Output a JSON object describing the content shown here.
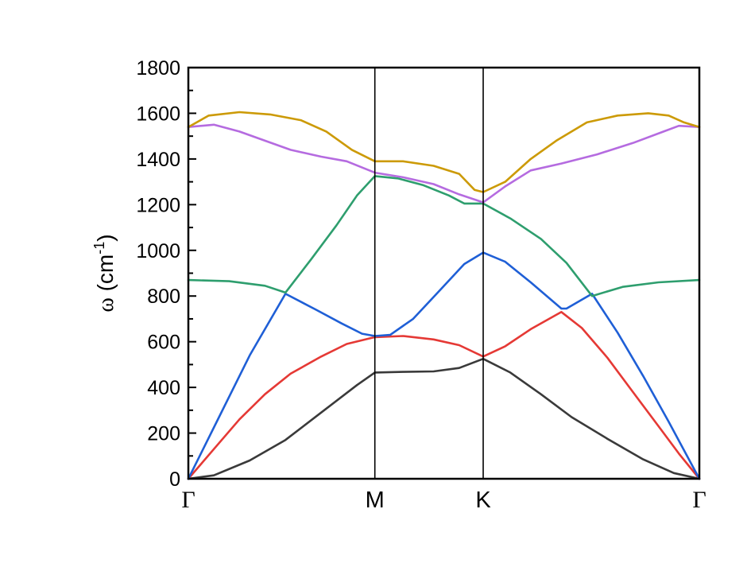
{
  "chart_data": {
    "type": "line",
    "title": "",
    "ylabel": "ω (cm⁻¹)",
    "ylabel_parts": {
      "symbol": "ω",
      "open": " (cm",
      "sup": "-1",
      "close": ")"
    },
    "xlabel": "",
    "ylim": [
      0,
      1800
    ],
    "yticks": [
      0,
      200,
      400,
      600,
      800,
      1000,
      1200,
      1400,
      1600,
      1800
    ],
    "xlim": [
      0,
      1
    ],
    "kpoints": [
      {
        "label": "Γ",
        "x": 0.0,
        "style": "greek"
      },
      {
        "label": "M",
        "x": 0.365
      },
      {
        "label": "K",
        "x": 0.577
      },
      {
        "label": "Γ",
        "x": 1.0,
        "style": "greek"
      }
    ],
    "grid": false,
    "series": [
      {
        "color": "#3a3a3a",
        "points": [
          [
            0,
            0
          ],
          [
            0.05,
            15
          ],
          [
            0.12,
            80
          ],
          [
            0.19,
            170
          ],
          [
            0.26,
            290
          ],
          [
            0.33,
            410
          ],
          [
            0.365,
            465
          ],
          [
            0.42,
            468
          ],
          [
            0.48,
            470
          ],
          [
            0.53,
            485
          ],
          [
            0.577,
            525
          ],
          [
            0.63,
            465
          ],
          [
            0.69,
            370
          ],
          [
            0.75,
            270
          ],
          [
            0.82,
            175
          ],
          [
            0.89,
            85
          ],
          [
            0.95,
            25
          ],
          [
            1.0,
            0
          ]
        ]
      },
      {
        "color": "#e53935",
        "points": [
          [
            0,
            0
          ],
          [
            0.05,
            130
          ],
          [
            0.1,
            260
          ],
          [
            0.15,
            370
          ],
          [
            0.2,
            460
          ],
          [
            0.26,
            535
          ],
          [
            0.31,
            590
          ],
          [
            0.365,
            620
          ],
          [
            0.42,
            625
          ],
          [
            0.48,
            610
          ],
          [
            0.53,
            585
          ],
          [
            0.577,
            535
          ],
          [
            0.62,
            580
          ],
          [
            0.67,
            655
          ],
          [
            0.73,
            730
          ],
          [
            0.77,
            660
          ],
          [
            0.82,
            530
          ],
          [
            0.87,
            380
          ],
          [
            0.92,
            230
          ],
          [
            0.96,
            110
          ],
          [
            1.0,
            0
          ]
        ]
      },
      {
        "color": "#1f5fd6",
        "points": [
          [
            0,
            0
          ],
          [
            0.06,
            270
          ],
          [
            0.12,
            540
          ],
          [
            0.19,
            810
          ],
          [
            0.25,
            740
          ],
          [
            0.3,
            680
          ],
          [
            0.34,
            635
          ],
          [
            0.365,
            625
          ],
          [
            0.395,
            630
          ],
          [
            0.44,
            700
          ],
          [
            0.49,
            820
          ],
          [
            0.54,
            940
          ],
          [
            0.577,
            990
          ],
          [
            0.62,
            950
          ],
          [
            0.67,
            860
          ],
          [
            0.73,
            745
          ],
          [
            0.74,
            745
          ],
          [
            0.79,
            810
          ],
          [
            0.84,
            640
          ],
          [
            0.89,
            450
          ],
          [
            0.94,
            250
          ],
          [
            1.0,
            0
          ]
        ]
      },
      {
        "color": "#2e9e6e",
        "points": [
          [
            0,
            870
          ],
          [
            0.08,
            865
          ],
          [
            0.15,
            845
          ],
          [
            0.19,
            815
          ],
          [
            0.24,
            960
          ],
          [
            0.29,
            1110
          ],
          [
            0.33,
            1240
          ],
          [
            0.365,
            1325
          ],
          [
            0.41,
            1315
          ],
          [
            0.46,
            1285
          ],
          [
            0.51,
            1240
          ],
          [
            0.54,
            1205
          ],
          [
            0.577,
            1205
          ],
          [
            0.63,
            1140
          ],
          [
            0.69,
            1050
          ],
          [
            0.74,
            945
          ],
          [
            0.79,
            800
          ],
          [
            0.85,
            840
          ],
          [
            0.92,
            860
          ],
          [
            1.0,
            870
          ]
        ]
      },
      {
        "color": "#b56be0",
        "points": [
          [
            0,
            1540
          ],
          [
            0.05,
            1550
          ],
          [
            0.1,
            1520
          ],
          [
            0.15,
            1480
          ],
          [
            0.2,
            1440
          ],
          [
            0.26,
            1410
          ],
          [
            0.31,
            1390
          ],
          [
            0.365,
            1340
          ],
          [
            0.42,
            1320
          ],
          [
            0.48,
            1290
          ],
          [
            0.53,
            1245
          ],
          [
            0.577,
            1210
          ],
          [
            0.62,
            1280
          ],
          [
            0.67,
            1350
          ],
          [
            0.73,
            1380
          ],
          [
            0.8,
            1420
          ],
          [
            0.87,
            1470
          ],
          [
            0.93,
            1520
          ],
          [
            0.96,
            1545
          ],
          [
            1.0,
            1540
          ]
        ]
      },
      {
        "color": "#cc9a06",
        "points": [
          [
            0,
            1540
          ],
          [
            0.04,
            1590
          ],
          [
            0.1,
            1605
          ],
          [
            0.16,
            1595
          ],
          [
            0.22,
            1570
          ],
          [
            0.27,
            1520
          ],
          [
            0.32,
            1440
          ],
          [
            0.365,
            1390
          ],
          [
            0.42,
            1390
          ],
          [
            0.48,
            1370
          ],
          [
            0.53,
            1335
          ],
          [
            0.56,
            1265
          ],
          [
            0.577,
            1255
          ],
          [
            0.62,
            1300
          ],
          [
            0.67,
            1400
          ],
          [
            0.72,
            1480
          ],
          [
            0.78,
            1560
          ],
          [
            0.84,
            1590
          ],
          [
            0.9,
            1600
          ],
          [
            0.94,
            1590
          ],
          [
            0.97,
            1560
          ],
          [
            1.0,
            1540
          ]
        ]
      }
    ]
  }
}
